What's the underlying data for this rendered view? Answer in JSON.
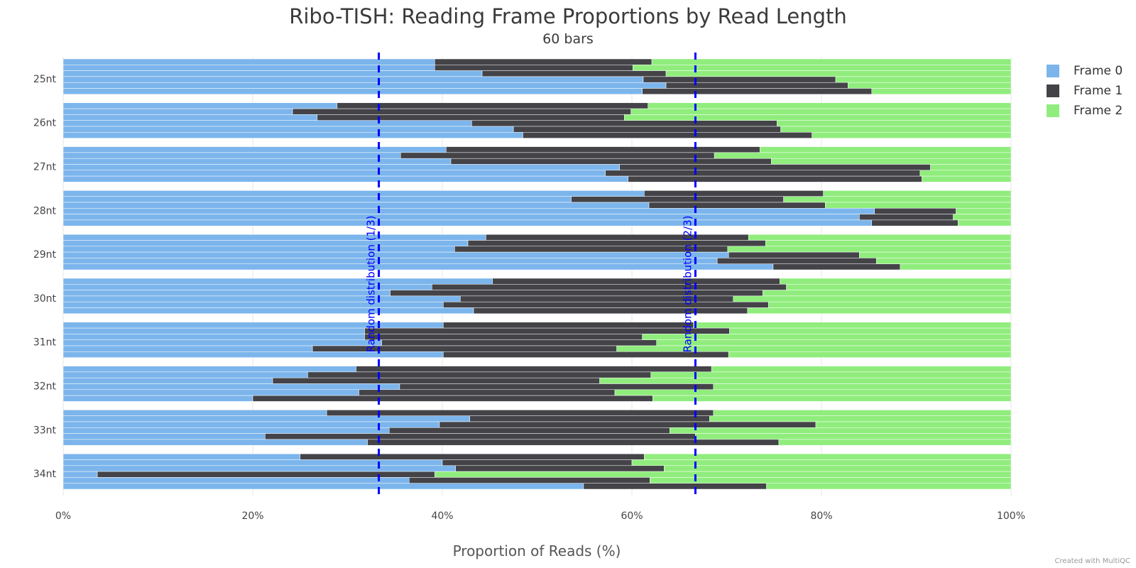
{
  "chart_data": {
    "type": "bar",
    "orientation": "horizontal",
    "stacked": true,
    "title": "Ribo-TISH: Reading Frame Proportions by Read Length",
    "subtitle": "60 bars",
    "xlabel": "Proportion of Reads (%)",
    "xlim": [
      0,
      100
    ],
    "x_ticks": [
      "0%",
      "20%",
      "40%",
      "60%",
      "80%",
      "100%"
    ],
    "grid": true,
    "legend_position": "right",
    "credit": "Created with MultiQC",
    "groups": [
      "25nt",
      "26nt",
      "27nt",
      "28nt",
      "29nt",
      "30nt",
      "31nt",
      "32nt",
      "33nt",
      "34nt"
    ],
    "bars_per_group": 6,
    "series": [
      {
        "name": "Frame 0",
        "color": "#7cb5ec"
      },
      {
        "name": "Frame 1",
        "color": "#434348"
      },
      {
        "name": "Frame 2",
        "color": "#90ed7d"
      }
    ],
    "bars": [
      [
        [
          39.2,
          22.9
        ],
        [
          39.2,
          20.9
        ],
        [
          44.2,
          19.4
        ],
        [
          61.2,
          20.3
        ],
        [
          63.6,
          19.2
        ],
        [
          61.1,
          24.2
        ]
      ],
      [
        [
          28.9,
          32.8
        ],
        [
          24.2,
          35.7
        ],
        [
          26.8,
          32.4
        ],
        [
          43.1,
          32.2
        ],
        [
          47.5,
          28.2
        ],
        [
          48.5,
          30.5
        ]
      ],
      [
        [
          40.4,
          33.1
        ],
        [
          35.6,
          33.1
        ],
        [
          40.9,
          33.8
        ],
        [
          58.7,
          32.8
        ],
        [
          57.2,
          33.2
        ],
        [
          59.6,
          31.0
        ]
      ],
      [
        [
          61.3,
          18.9
        ],
        [
          53.6,
          22.4
        ],
        [
          61.8,
          18.6
        ],
        [
          85.6,
          8.6
        ],
        [
          84.0,
          9.9
        ],
        [
          85.3,
          9.1
        ]
      ],
      [
        [
          44.6,
          27.7
        ],
        [
          42.7,
          31.4
        ],
        [
          41.3,
          28.8
        ],
        [
          70.2,
          13.8
        ],
        [
          69.0,
          16.8
        ],
        [
          74.9,
          13.4
        ]
      ],
      [
        [
          45.3,
          30.3
        ],
        [
          38.9,
          37.4
        ],
        [
          34.5,
          39.3
        ],
        [
          41.9,
          28.8
        ],
        [
          40.1,
          34.3
        ],
        [
          43.3,
          28.9
        ]
      ],
      [
        [
          40.1,
          26.4
        ],
        [
          31.8,
          38.5
        ],
        [
          31.8,
          29.3
        ],
        [
          33.6,
          29.0
        ],
        [
          26.3,
          32.1
        ],
        [
          40.1,
          30.1
        ]
      ],
      [
        [
          30.9,
          37.5
        ],
        [
          25.8,
          36.2
        ],
        [
          22.1,
          34.5
        ],
        [
          35.5,
          33.1
        ],
        [
          31.2,
          27.0
        ],
        [
          20.0,
          42.2
        ]
      ],
      [
        [
          27.8,
          40.8
        ],
        [
          42.9,
          25.3
        ],
        [
          39.7,
          39.7
        ],
        [
          34.4,
          29.6
        ],
        [
          21.3,
          45.4
        ],
        [
          32.1,
          43.4
        ]
      ],
      [
        [
          25.0,
          36.3
        ],
        [
          40.0,
          20.0
        ],
        [
          41.4,
          22.0
        ],
        [
          3.6,
          35.6
        ],
        [
          36.5,
          25.4
        ],
        [
          54.9,
          19.3
        ]
      ]
    ],
    "reference_lines": [
      {
        "x": 33.3,
        "label": "Random distribution (1/3)",
        "color": "#0000ff"
      },
      {
        "x": 66.7,
        "label": "Random distribution (2/3)",
        "color": "#0000ff"
      }
    ]
  }
}
